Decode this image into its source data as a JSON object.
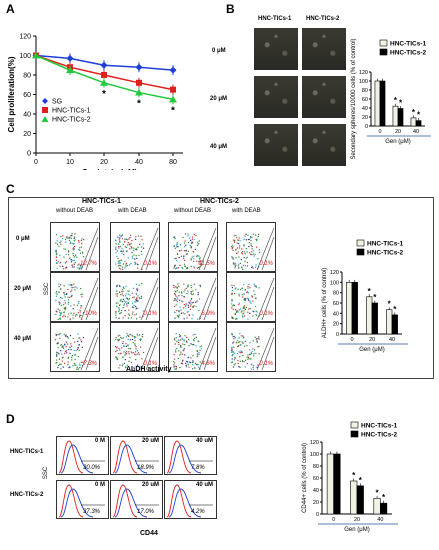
{
  "panels": {
    "A": {
      "label": "A",
      "chart_data": {
        "type": "line",
        "x": [
          0,
          10,
          20,
          40,
          80
        ],
        "xticks": [
          "0",
          "10",
          "20",
          "40",
          "80"
        ],
        "yticks": [
          "0",
          "20",
          "40",
          "60",
          "80",
          "100",
          "120"
        ],
        "xlabel": "Genistein (μM)",
        "ylabel": "Cell proliferation(%)",
        "ylim": [
          0,
          120
        ],
        "grid": false,
        "legend": "bottom-left",
        "series": [
          {
            "name": "SG",
            "values": [
              100,
              97,
              90,
              88,
              85
            ],
            "color": "#1f3fd6",
            "marker": "diamond"
          },
          {
            "name": "HNC-TICs-1",
            "values": [
              100,
              88,
              80,
              72,
              65
            ],
            "color": "#e0201c",
            "marker": "square"
          },
          {
            "name": "HNC-TICs-2",
            "values": [
              100,
              85,
              72,
              62,
              55
            ],
            "color": "#22c93a",
            "marker": "triangle"
          }
        ],
        "annotations": [
          "*",
          "*",
          "*"
        ]
      }
    },
    "B": {
      "label": "B",
      "column_titles": [
        "HNC-TICs-1",
        "HNC-TICs-2"
      ],
      "row_labels": [
        "0 μM",
        "20 μM",
        "40 μM"
      ],
      "chart_data": {
        "type": "bar",
        "categories": [
          "0",
          "20",
          "40"
        ],
        "xlabel": "Gen (μM)",
        "ylabel": "Secondary spheres/10000 cells (% of control)",
        "yticks": [
          "0",
          "20",
          "40",
          "60",
          "80",
          "100",
          "120"
        ],
        "ylim": [
          0,
          120
        ],
        "legend": "top-right",
        "series": [
          {
            "name": "HNC-TICs-1",
            "values": [
              100,
              44,
              18
            ],
            "color": "#f2f2e4"
          },
          {
            "name": "HNC-TICs-2",
            "values": [
              100,
              39,
              12
            ],
            "color": "#000000"
          }
        ],
        "annotations": [
          "*",
          "*",
          "*",
          "*"
        ]
      }
    },
    "C": {
      "label": "C",
      "group_titles": [
        "HNC-TICs-1",
        "HNC-TICs-2"
      ],
      "sub_titles": [
        "without DEAB",
        "with DEAB",
        "without DEAB",
        "with DEAB"
      ],
      "row_labels": [
        "0 μM",
        "20 μM",
        "40 μM"
      ],
      "ssc_label": "SSC",
      "xlabel": "ALDH activity",
      "percents": [
        [
          "12.7%",
          "0.1%",
          "11.5%",
          "0.1%"
        ],
        [
          "10%",
          "0.1%",
          "6.9%",
          "0.1%"
        ],
        [
          "7.3%",
          "0.1%",
          "4.6%",
          "0.1%"
        ]
      ],
      "chart_data": {
        "type": "bar",
        "categories": [
          "0",
          "20",
          "40"
        ],
        "xlabel": "Gen (μM)",
        "ylabel": "ALDH+ cells (% of control)",
        "yticks": [
          "0",
          "20",
          "40",
          "60",
          "80",
          "100",
          "120"
        ],
        "ylim": [
          0,
          120
        ],
        "legend": "top-right",
        "series": [
          {
            "name": "HNC-TICs-1",
            "values": [
              100,
              72,
              47
            ],
            "color": "#f2f2e4"
          },
          {
            "name": "HNC-TICs-2",
            "values": [
              100,
              60,
              37
            ],
            "color": "#000000"
          }
        ],
        "annotations": [
          "*",
          "*",
          "*",
          "*"
        ]
      }
    },
    "D": {
      "label": "D",
      "row_labels": [
        "HNC-TICs-1",
        "HNC-TICs-2"
      ],
      "col_titles": [
        "0 M",
        "20 uM",
        "40 uM"
      ],
      "ssc_label": "SSC",
      "xlabel": "CD44",
      "percents": [
        [
          "30.0%",
          "18.9%",
          "7.8%"
        ],
        [
          "37.3%",
          "17.0%",
          "4.2%"
        ]
      ],
      "chart_data": {
        "type": "bar",
        "categories": [
          "0",
          "20",
          "40"
        ],
        "xlabel": "Gen (μM)",
        "ylabel": "CD44+ cells (% of control)",
        "yticks": [
          "0",
          "20",
          "40",
          "60",
          "80",
          "100",
          "120"
        ],
        "ylim": [
          0,
          120
        ],
        "legend": "top-right",
        "series": [
          {
            "name": "HNC-TICs-1",
            "values": [
              100,
              55,
              26
            ],
            "color": "#f2f2e4"
          },
          {
            "name": "HNC-TICs-2",
            "values": [
              100,
              47,
              18
            ],
            "color": "#000000"
          }
        ],
        "annotations": [
          "*",
          "*",
          "*",
          "*"
        ]
      }
    }
  }
}
